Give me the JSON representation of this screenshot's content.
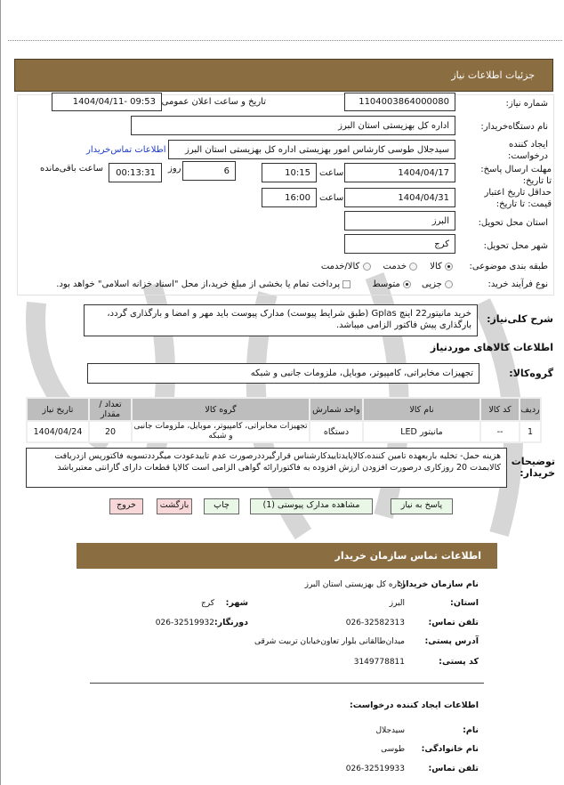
{
  "header": {
    "title": "جزئیات اطلاعات نیاز"
  },
  "form": {
    "need_number_label": "شماره نیاز:",
    "need_number": "1104003864000080",
    "announce_label": "تاریخ و ساعت اعلان عمومی:",
    "announce_value": "1404/04/11- 09:53",
    "buyer_label": "نام دستگاه‌خریدار:",
    "buyer_value": "اداره کل بهزیستی استان البرز",
    "creator_label": "ایجاد کننده درخواست:",
    "creator_value": "سیدجلال طوسی کارشاس امور بهزیستی اداره کل بهزیستی استان البرز",
    "contact_link": "اطلاعات تماس‌خریدار",
    "deadline_label": "مهلت ارسال پاسخ: تا تاریخ:",
    "deadline_date": "1404/04/17",
    "time_label": "ساعت",
    "deadline_time": "10:15",
    "days_value": "6",
    "days_label": "روز",
    "remaining_value": "00:13:31",
    "remaining_label": "ساعت باقی‌مانده",
    "validity_label": "حداقل تاریخ اعتبار قیمت: تا تاریخ:",
    "validity_date": "1404/04/31",
    "validity_time": "16:00",
    "province_label": "استان محل تحویل:",
    "province_value": "البرز",
    "city_label": "شهر محل تحویل:",
    "city_value": "کرج",
    "category_label": "طبقه بندی موضوعی:",
    "category_options": [
      "کالا",
      "خدمت",
      "کالا/خدمت"
    ],
    "process_label": "نوع فرآیند خرید:",
    "process_options": [
      "جزیی",
      "متوسط"
    ],
    "payment_note": "پرداخت تمام یا بخشی از مبلغ خرید،از محل \"اسناد خزانه اسلامی\" خواهد بود."
  },
  "description": {
    "label": "شرح کلی‌نیاز:",
    "value": "خرید مانیتور22 اینچ Gplas (طبق شرایط پیوست) مدارک پیوست باید مهر و امضا و بارگذاری گردد، بارگذاری پیش فاکتور الزامی میباشد."
  },
  "goods": {
    "heading": "اطلاعات کالاهای موردنیاز",
    "group_label": "گروه‌کالا:",
    "group_value": "تجهیزات مخابراتی، کامپیوتر، موبایل، ملزومات جانبی و شبکه",
    "columns": [
      "ردیف",
      "کد کالا",
      "نام کالا",
      "واحد شمارش",
      "گروه کالا",
      "تعداد / مقدار",
      "تاریخ نیاز"
    ],
    "rows": [
      [
        "1",
        "--",
        "مانیتور LED",
        "دستگاه",
        "تجهیزات مخابراتی، کامپیوتر، موبایل، ملزومات جانبی و شبکه",
        "20",
        "1404/04/24"
      ]
    ]
  },
  "notes": {
    "label": "توضیحات خریدار:",
    "value": "هزینه حمل- تخلیه باربعهده تامین کننده،کالاپایدتاییدکارشناس قرارگیرددرصورت عدم تاییدعودت میگرددتسویه فاکتورپس ازدریافت کالابمدت 20 روزکاری درصورت افزودن ارزش افزوده به فاکتورارائه گواهی الزامی است کالاپا قطعات دارای گارانتی معتبرباشد"
  },
  "buttons": {
    "reply": "پاسخ به نیاز",
    "attachments": "مشاهده مدارک پیوستی (1)",
    "print": "چاپ",
    "back": "بازگشت",
    "exit": "خروج"
  },
  "contact": {
    "title": "اطلاعات تماس سازمان خریدار",
    "org_label": "نام سازمان خریدار:",
    "org_value": "اداره کل بهزیستی استان البرز",
    "province_label": "استان:",
    "province_value": "البرز",
    "city_label": "شهر:",
    "city_value": "کرج",
    "phone_label": "تلفن تماس:",
    "phone_value": "026-32582313",
    "fax_label": "دورنگار:",
    "fax_value": "026-32519932",
    "address_label": "آدرس پستی:",
    "address_value": "میدان‌طالقانی بلوار تعاون‌خیابان تربیت شرقی",
    "postal_label": "کد پستی:",
    "postal_value": "3149778811",
    "creator_heading": "اطلاعات ایجاد کننده درخواست:",
    "name_label": "نام:",
    "name_value": "سیدجلال",
    "family_label": "نام خانوادگی:",
    "family_value": "طوسی",
    "cphone_label": "تلفن تماس:",
    "cphone_value": "026-32519933"
  },
  "colors": {
    "header": "#8b6d42",
    "link": "#1a3ccc",
    "green_button": "#e8f7e6",
    "red_button": "#f7d7d8"
  }
}
